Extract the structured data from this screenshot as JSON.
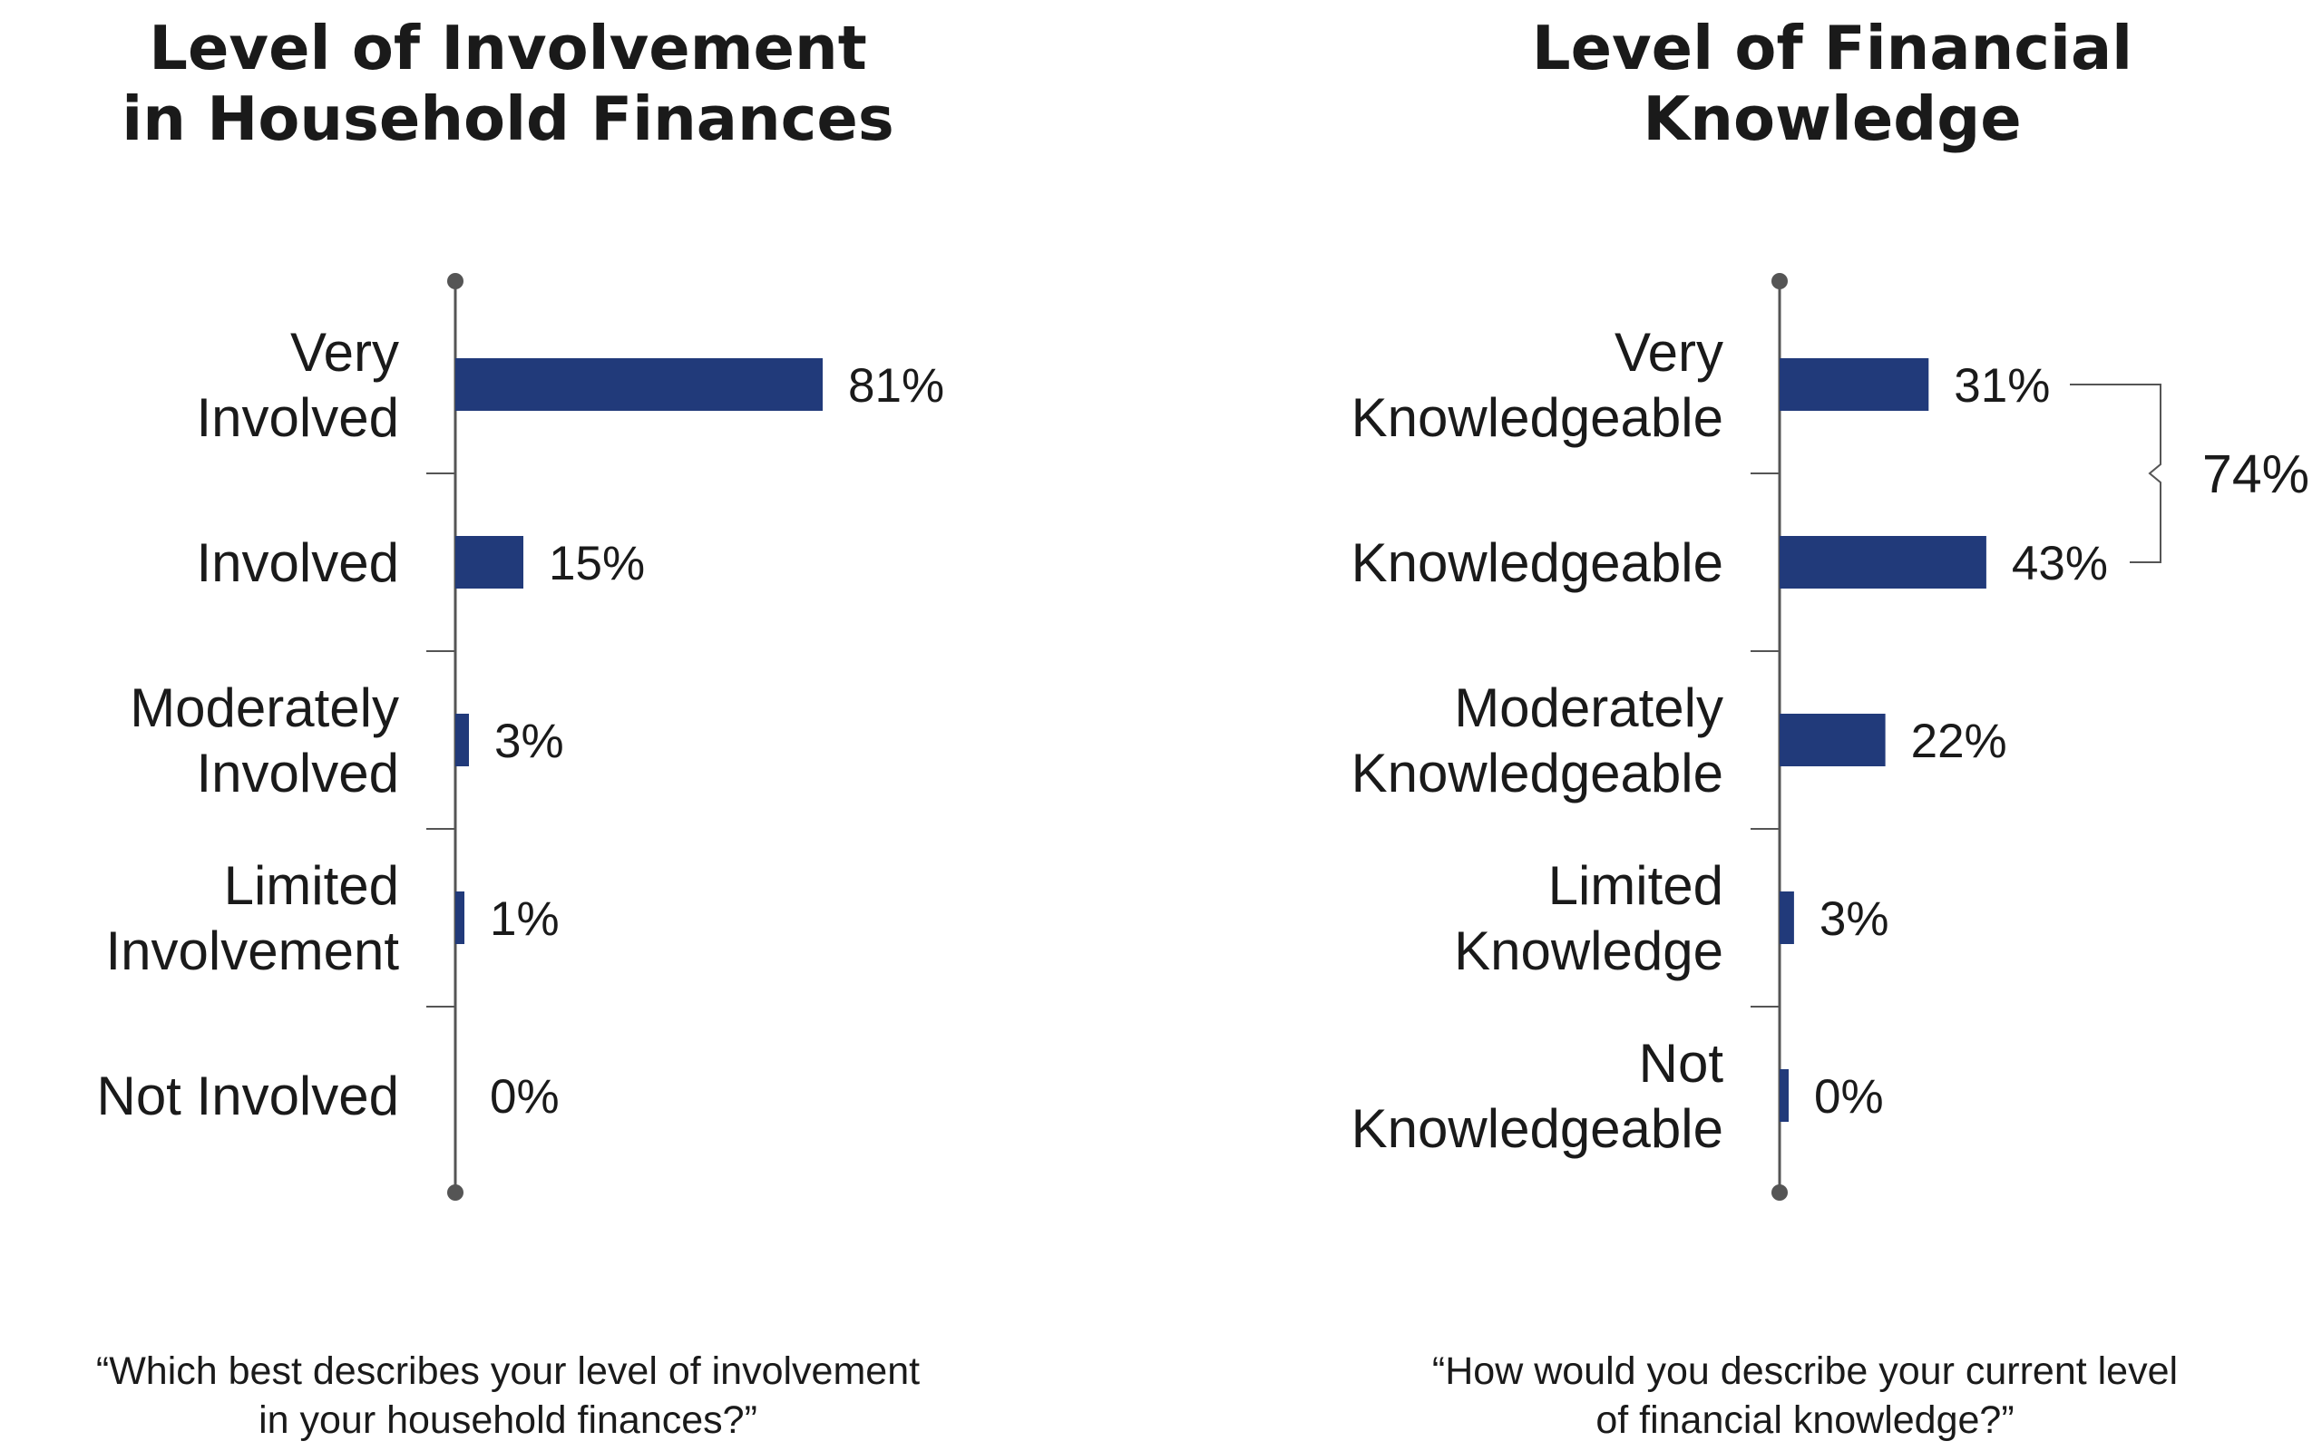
{
  "chart_data": [
    {
      "type": "bar",
      "orientation": "horizontal",
      "title": "Level of Involvement\nin Household Finances",
      "categories": [
        "Very\nInvolved",
        "Involved",
        "Moderately\nInvolved",
        "Limited\nInvolvement",
        "Not Involved"
      ],
      "values": [
        81,
        15,
        3,
        1,
        0
      ],
      "value_labels": [
        "81%",
        "15%",
        "3%",
        "1%",
        "0%"
      ],
      "unit": "%",
      "xlim": [
        0,
        100
      ],
      "question": "“Which best describes your level of involvement\nin your household finances?”",
      "bar_color": "#213a7a",
      "axis_color": "#555555",
      "grid": false,
      "legend": "none"
    },
    {
      "type": "bar",
      "orientation": "horizontal",
      "title": "Level of Financial\nKnowledge",
      "categories": [
        "Very\nKnowledgeable",
        "Knowledgeable",
        "Moderately\nKnowledgeable",
        "Limited\nKnowledge",
        "Not\nKnowledgeable"
      ],
      "values": [
        31,
        43,
        22,
        3,
        0
      ],
      "value_labels": [
        "31%",
        "43%",
        "22%",
        "3%",
        "0%"
      ],
      "unit": "%",
      "xlim": [
        0,
        100
      ],
      "bracket": {
        "from": 0,
        "to": 1,
        "label": "74%"
      },
      "question": "“How would you describe your current level\nof financial knowledge?”",
      "bar_color": "#213a7a",
      "axis_color": "#555555",
      "grid": false,
      "legend": "none"
    }
  ]
}
